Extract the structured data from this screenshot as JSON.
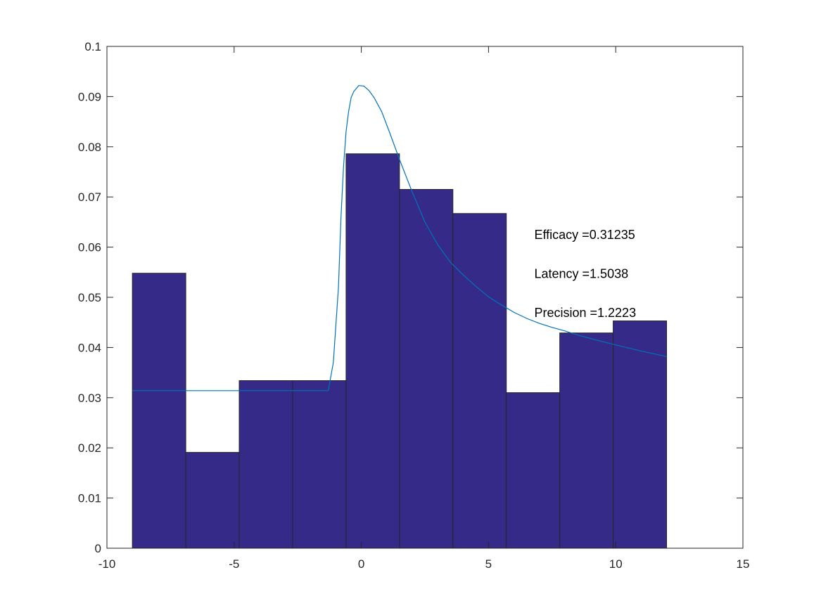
{
  "chart_data": {
    "type": "bar",
    "title": "",
    "xlabel": "",
    "ylabel": "",
    "xlim": [
      -10,
      15
    ],
    "ylim": [
      0,
      0.1
    ],
    "xticks": [
      -10,
      -5,
      0,
      5,
      10,
      15
    ],
    "yticks": [
      0,
      0.01,
      0.02,
      0.03,
      0.04,
      0.05,
      0.06,
      0.07,
      0.08,
      0.09,
      0.1
    ],
    "xtick_labels": [
      "-10",
      "-5",
      "0",
      "5",
      "10",
      "15"
    ],
    "ytick_labels": [
      "0",
      "0.01",
      "0.02",
      "0.03",
      "0.04",
      "0.05",
      "0.06",
      "0.07",
      "0.08",
      "0.09",
      "0.1"
    ],
    "grid": false,
    "bar_color": "#352a87",
    "bar_edge_color": "#262626",
    "line_color": "#0072bd",
    "bin_edges": [
      -9,
      -6.9,
      -4.8,
      -2.7,
      -0.6,
      1.5,
      3.6,
      5.7,
      7.8,
      9.9,
      12.0
    ],
    "values": [
      0.0548,
      0.0191,
      0.0334,
      0.0334,
      0.0786,
      0.0715,
      0.0667,
      0.031,
      0.0429,
      0.0453
    ],
    "fit_curve": {
      "x": [
        -9,
        -8,
        -7,
        -6,
        -5,
        -4,
        -3,
        -2,
        -1.3,
        -1.1,
        -0.9,
        -0.8,
        -0.7,
        -0.6,
        -0.5,
        -0.4,
        -0.3,
        -0.1,
        0.1,
        0.3,
        0.5,
        0.8,
        1.1,
        1.5,
        2,
        2.5,
        3,
        3.5,
        4,
        4.5,
        5,
        5.5,
        6,
        6.5,
        7,
        7.5,
        8,
        8.5,
        9,
        10,
        11,
        12
      ],
      "y": [
        0.0314,
        0.0314,
        0.0314,
        0.0314,
        0.0314,
        0.0314,
        0.0314,
        0.0314,
        0.0314,
        0.037,
        0.052,
        0.066,
        0.076,
        0.083,
        0.087,
        0.0898,
        0.091,
        0.0922,
        0.0921,
        0.0912,
        0.0898,
        0.087,
        0.083,
        0.0775,
        0.071,
        0.065,
        0.0605,
        0.057,
        0.0545,
        0.0522,
        0.0501,
        0.0485,
        0.047,
        0.0458,
        0.0448,
        0.044,
        0.0433,
        0.0425,
        0.0418,
        0.0405,
        0.0393,
        0.0382
      ]
    },
    "annotations": [
      {
        "text": "Efficacy =0.31235",
        "x": 6.8,
        "y": 0.0625
      },
      {
        "text": "Latency =1.5038",
        "x": 6.8,
        "y": 0.0547
      },
      {
        "text": "Precision =1.2223",
        "x": 6.8,
        "y": 0.0469
      }
    ]
  }
}
